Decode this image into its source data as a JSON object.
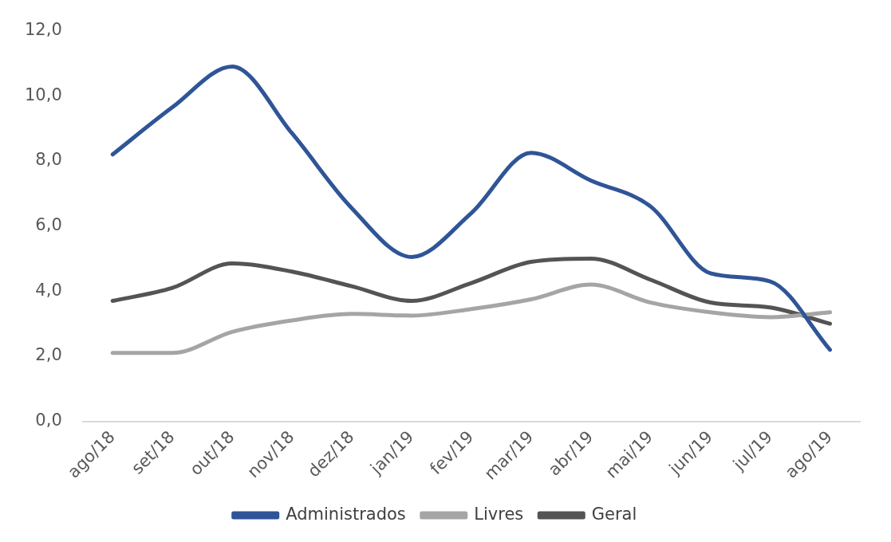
{
  "chart_data": {
    "type": "line",
    "categories": [
      "ago/18",
      "set/18",
      "out/18",
      "nov/18",
      "dez/18",
      "jan/19",
      "fev/19",
      "mar/19",
      "abr/19",
      "mai/19",
      "jun/19",
      "jul/19",
      "ago/19"
    ],
    "series": [
      {
        "name": "Administrados",
        "color": "#2f5597",
        "values": [
          8.2,
          9.65,
          10.9,
          8.85,
          6.55,
          5.05,
          6.4,
          8.25,
          7.4,
          6.6,
          4.55,
          4.3,
          2.2
        ]
      },
      {
        "name": "Livres",
        "color": "#a5a5a5",
        "values": [
          2.1,
          2.1,
          2.75,
          3.1,
          3.3,
          3.25,
          3.45,
          3.75,
          4.2,
          3.65,
          3.35,
          3.2,
          3.35
        ]
      },
      {
        "name": "Geral",
        "color": "#545454",
        "values": [
          3.7,
          4.1,
          4.85,
          4.6,
          4.15,
          3.7,
          4.25,
          4.9,
          5.0,
          4.35,
          3.65,
          3.5,
          3.0
        ]
      }
    ],
    "ylim": [
      0,
      12
    ],
    "yticks": [
      {
        "value": 0,
        "label": "0,0"
      },
      {
        "value": 2,
        "label": "2,0"
      },
      {
        "value": 4,
        "label": "4,0"
      },
      {
        "value": 6,
        "label": "6,0"
      },
      {
        "value": 8,
        "label": "8,0"
      },
      {
        "value": 10,
        "label": "10,0"
      },
      {
        "value": 12,
        "label": "12,0"
      }
    ],
    "grid": false,
    "legend": "bottom",
    "marker": "none",
    "line_style": "solid"
  }
}
